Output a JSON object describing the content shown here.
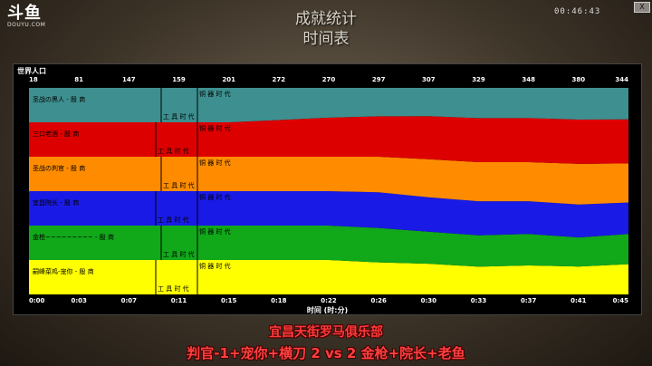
{
  "logo": {
    "brand": "斗鱼",
    "sub": "DOUYU.COM"
  },
  "screen": {
    "title_line1": "成就统计",
    "title_line2": "时间表",
    "clock": "00:46:43",
    "close_label": "X"
  },
  "chart_data": {
    "type": "area",
    "title": "世界人口",
    "xlabel": "时间 (时:分)",
    "population_labels": [
      "18",
      "81",
      "147",
      "159",
      "201",
      "272",
      "270",
      "297",
      "307",
      "329",
      "348",
      "380",
      "344"
    ],
    "x": [
      "0:00",
      "0:03",
      "0:07",
      "0:11",
      "0:15",
      "0:18",
      "0:22",
      "0:26",
      "0:30",
      "0:33",
      "0:37",
      "0:41",
      "0:45"
    ],
    "series": [
      {
        "name": "嗣峰菜鸡-宠你 - 殷 商",
        "color": "#ffff00",
        "values": [
          3,
          3,
          3,
          3,
          3,
          3,
          3,
          2.7,
          2.5,
          2.2,
          2.3,
          2.2,
          2.4
        ]
      },
      {
        "name": "金枪~~~~~~~~~ - 殷 商",
        "color": "#11a81a",
        "values": [
          3,
          3,
          3,
          3,
          3,
          3,
          3,
          2.9,
          2.6,
          2.5,
          2.5,
          2.3,
          2.4
        ]
      },
      {
        "name": "宜昌院长 - 殷 商",
        "color": "#1a1ae6",
        "values": [
          3,
          3,
          3,
          3,
          3,
          3,
          3,
          3,
          2.8,
          2.7,
          2.6,
          2.6,
          2.5
        ]
      },
      {
        "name": "圣战の判官 - 殷 商",
        "color": "#ff8c00",
        "values": [
          3,
          3,
          3,
          3,
          3,
          3,
          3,
          3,
          3.1,
          3.1,
          3.1,
          3.2,
          3.1
        ]
      },
      {
        "name": "三口老酒 - 殷 商",
        "color": "#dd0000",
        "values": [
          3,
          3,
          3,
          3,
          3,
          3.2,
          3.4,
          3.4,
          3.5,
          3.5,
          3.5,
          3.5,
          3.5
        ]
      },
      {
        "name": "圣战の黑人 - 殷 商",
        "color": "#3e8f8f",
        "values": [
          3,
          3,
          3,
          3,
          3,
          2.8,
          2.6,
          2.4,
          2.3,
          2.4,
          2.4,
          2.5,
          2.5
        ]
      }
    ],
    "age_markers": {
      "tool_age": "工 具 时 代",
      "bronze_age": "铜 器 时 代"
    },
    "grid": false
  },
  "caption": {
    "line1": "宜昌天街罗马俱乐部",
    "line2": "判官-1+宠你+横刀 2 vs 2 金枪+院长+老鱼"
  }
}
